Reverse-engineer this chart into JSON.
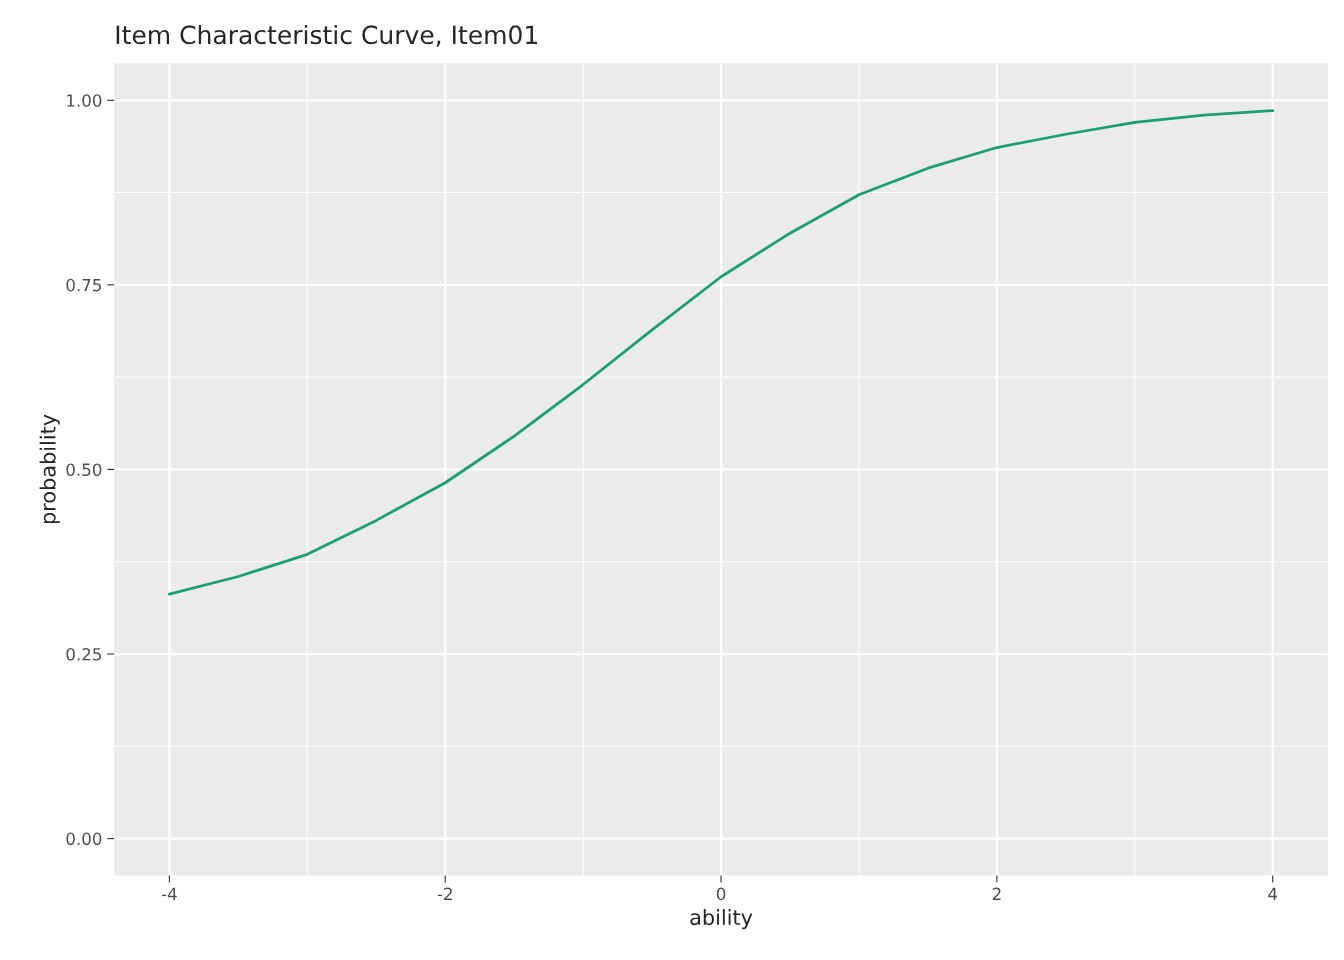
{
  "chart_data": {
    "type": "line",
    "title": "Item Characteristic Curve, Item01",
    "xlabel": "ability",
    "ylabel": "probability",
    "x": [
      -4,
      -3.5,
      -3,
      -2.5,
      -2,
      -1.5,
      -1,
      -0.5,
      0,
      0.5,
      1,
      1.5,
      2,
      2.5,
      3,
      3.5,
      4
    ],
    "series": [
      {
        "color": "#1b9e77",
        "values": [
          0.331,
          0.355,
          0.385,
          0.431,
          0.482,
          0.545,
          0.615,
          0.689,
          0.761,
          0.82,
          0.872,
          0.908,
          0.936,
          0.954,
          0.97,
          0.98,
          0.986
        ]
      }
    ],
    "xlim": [
      -4.4,
      4.4
    ],
    "ylim": [
      -0.05,
      1.05
    ],
    "xticks": [
      -4,
      -2,
      0,
      2,
      4
    ],
    "yticks": [
      {
        "value": 0,
        "label": "0.00"
      },
      {
        "value": 0.25,
        "label": "0.25"
      },
      {
        "value": 0.5,
        "label": "0.50"
      },
      {
        "value": 0.75,
        "label": "0.75"
      },
      {
        "value": 1,
        "label": "1.00"
      }
    ],
    "grid": true,
    "marker": "none",
    "line_style": "solid"
  }
}
